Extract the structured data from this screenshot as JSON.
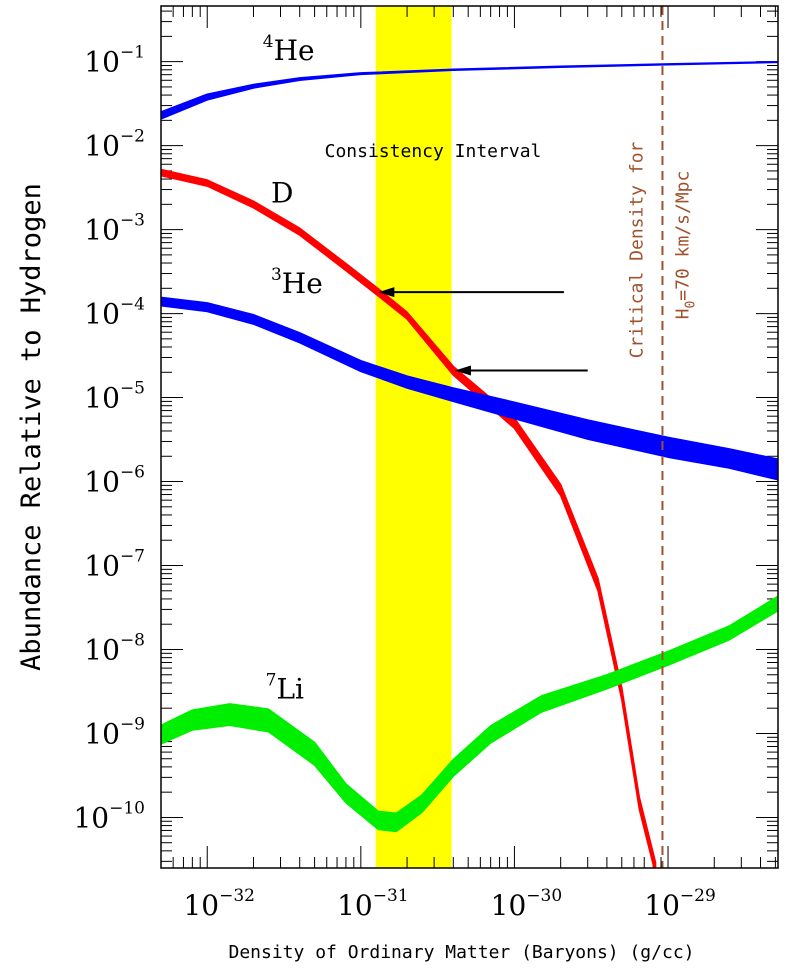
{
  "chart_data": {
    "type": "line",
    "xlabel": "Density of Ordinary Matter (Baryons) (g/cc)",
    "ylabel": "Abundance Relative to Hydrogen",
    "x_scale": "log",
    "y_scale": "log",
    "xlim": [
      5e-33,
      5.2e-29
    ],
    "ylim": [
      2.5e-11,
      0.46
    ],
    "x_ticks": [
      {
        "mantissa": "10",
        "exponent": "−32",
        "value": 1e-32
      },
      {
        "mantissa": "10",
        "exponent": "−31",
        "value": 1e-31
      },
      {
        "mantissa": "10",
        "exponent": "−30",
        "value": 1e-30
      },
      {
        "mantissa": "10",
        "exponent": "−29",
        "value": 1e-29
      }
    ],
    "y_ticks": [
      {
        "mantissa": "10",
        "exponent": "−1",
        "value": 0.1
      },
      {
        "mantissa": "10",
        "exponent": "−2",
        "value": 0.01
      },
      {
        "mantissa": "10",
        "exponent": "−3",
        "value": 0.001
      },
      {
        "mantissa": "10",
        "exponent": "−4",
        "value": 0.0001
      },
      {
        "mantissa": "10",
        "exponent": "−5",
        "value": 1e-05
      },
      {
        "mantissa": "10",
        "exponent": "−6",
        "value": 1e-06
      },
      {
        "mantissa": "10",
        "exponent": "−7",
        "value": 1e-07
      },
      {
        "mantissa": "10",
        "exponent": "−8",
        "value": 1e-08
      },
      {
        "mantissa": "10",
        "exponent": "−9",
        "value": 1e-09
      },
      {
        "mantissa": "10",
        "exponent": "−10",
        "value": 1e-10
      }
    ],
    "band": {
      "label": "Consistency Interval",
      "x_range": [
        1.25e-31,
        3.9e-31
      ],
      "color": "#ffff00"
    },
    "critical_line": {
      "x": 9.2e-30,
      "label_line1": "Critical Density for",
      "label_line2_prefix": "H",
      "label_line2_sub": "0",
      "label_line2_rest": "=70 km/s/Mpc",
      "color": "#a0522d"
    },
    "arrows": [
      {
        "from": [
          2.1e-30,
          0.00018
        ],
        "to": [
          1.3e-31,
          0.00018
        ]
      },
      {
        "from": [
          3e-30,
          2.1e-05
        ],
        "to": [
          4.1e-31,
          2.1e-05
        ]
      }
    ],
    "series": [
      {
        "sup": "4",
        "name": "He",
        "color": "#0000ff",
        "label_at": [
          2.3e-32,
          0.105
        ],
        "points": [
          {
            "x": 5e-33,
            "y": 0.023,
            "w": 0.0022
          },
          {
            "x": 1e-32,
            "y": 0.038,
            "w": 0.003
          },
          {
            "x": 2e-32,
            "y": 0.051,
            "w": 0.0025
          },
          {
            "x": 4e-32,
            "y": 0.062,
            "w": 0.002
          },
          {
            "x": 1e-31,
            "y": 0.072,
            "w": 0.0015
          },
          {
            "x": 4e-31,
            "y": 0.08,
            "w": 0.0012
          },
          {
            "x": 2e-30,
            "y": 0.087,
            "w": 0.001
          },
          {
            "x": 1e-29,
            "y": 0.093,
            "w": 0.001
          },
          {
            "x": 5.2e-29,
            "y": 0.099,
            "w": 0.001
          }
        ]
      },
      {
        "sup": "",
        "name": "D",
        "color": "#ff0000",
        "label_at": [
          2.6e-32,
          0.0021
        ],
        "points": [
          {
            "x": 5e-33,
            "y": 0.0048,
            "w": 0.0004
          },
          {
            "x": 1e-32,
            "y": 0.0036,
            "w": 0.0003
          },
          {
            "x": 2e-32,
            "y": 0.002,
            "w": 0.00018
          },
          {
            "x": 4e-32,
            "y": 0.00095,
            "w": 9e-05
          },
          {
            "x": 8e-32,
            "y": 0.00036,
            "w": 3.5e-05
          },
          {
            "x": 1.3e-31,
            "y": 0.00018,
            "w": 1.8e-05
          },
          {
            "x": 2e-31,
            "y": 9.5e-05,
            "w": 9e-06
          },
          {
            "x": 4e-31,
            "y": 2.1e-05,
            "w": 2.5e-06
          },
          {
            "x": 1e-30,
            "y": 5e-06,
            "w": 7e-07
          },
          {
            "x": 2e-30,
            "y": 8e-07,
            "w": 1.2e-07
          },
          {
            "x": 3.5e-30,
            "y": 6e-08,
            "w": 1e-08
          },
          {
            "x": 5e-30,
            "y": 3e-09,
            "w": 5e-10
          },
          {
            "x": 6.5e-30,
            "y": 1.5e-10,
            "w": 2.5e-11
          },
          {
            "x": 8.3e-30,
            "y": 2.5e-11,
            "w": 4e-12
          }
        ]
      },
      {
        "sup": "3",
        "name": "He",
        "color": "#0000ff",
        "label_at": [
          2.6e-32,
          0.000175
        ],
        "points": [
          {
            "x": 5e-33,
            "y": 0.00014,
            "w": 1.6e-05
          },
          {
            "x": 1e-32,
            "y": 0.00012,
            "w": 1.4e-05
          },
          {
            "x": 2e-32,
            "y": 8.6e-05,
            "w": 1.1e-05
          },
          {
            "x": 4e-32,
            "y": 5.2e-05,
            "w": 7e-06
          },
          {
            "x": 1e-31,
            "y": 2.4e-05,
            "w": 3.5e-06
          },
          {
            "x": 2e-31,
            "y": 1.55e-05,
            "w": 2.5e-06
          },
          {
            "x": 4e-31,
            "y": 1.1e-05,
            "w": 2e-06
          },
          {
            "x": 1e-30,
            "y": 7.2e-06,
            "w": 1.6e-06
          },
          {
            "x": 3e-30,
            "y": 4.3e-06,
            "w": 1.1e-06
          },
          {
            "x": 1e-29,
            "y": 2.65e-06,
            "w": 7e-07
          },
          {
            "x": 2.5e-29,
            "y": 1.95e-06,
            "w": 5e-07
          },
          {
            "x": 5.2e-29,
            "y": 1.45e-06,
            "w": 4e-07
          }
        ]
      },
      {
        "sup": "7",
        "name": "Li",
        "color": "#00ee00",
        "label_at": [
          2.4e-32,
          2.6e-09
        ],
        "points": [
          {
            "x": 5e-33,
            "y": 1e-09,
            "w": 2.5e-10
          },
          {
            "x": 8e-33,
            "y": 1.5e-09,
            "w": 4e-10
          },
          {
            "x": 1.4e-32,
            "y": 1.75e-09,
            "w": 5e-10
          },
          {
            "x": 2.5e-32,
            "y": 1.5e-09,
            "w": 4.5e-10
          },
          {
            "x": 5e-32,
            "y": 6e-10,
            "w": 1.8e-10
          },
          {
            "x": 8e-32,
            "y": 2e-10,
            "w": 5e-11
          },
          {
            "x": 1.3e-31,
            "y": 9.5e-11,
            "w": 2.3e-11
          },
          {
            "x": 1.7e-31,
            "y": 9e-11,
            "w": 2.2e-11
          },
          {
            "x": 2.5e-31,
            "y": 1.5e-10,
            "w": 3.5e-11
          },
          {
            "x": 4e-31,
            "y": 4e-10,
            "w": 9e-11
          },
          {
            "x": 7e-31,
            "y": 1e-09,
            "w": 2.3e-10
          },
          {
            "x": 1.5e-30,
            "y": 2.3e-09,
            "w": 5e-10
          },
          {
            "x": 4e-30,
            "y": 4.2e-09,
            "w": 8e-10
          },
          {
            "x": 1e-29,
            "y": 8e-09,
            "w": 1.5e-09
          },
          {
            "x": 2.5e-29,
            "y": 1.6e-08,
            "w": 3e-09
          },
          {
            "x": 5.2e-29,
            "y": 3.6e-08,
            "w": 7e-09
          }
        ]
      }
    ]
  }
}
